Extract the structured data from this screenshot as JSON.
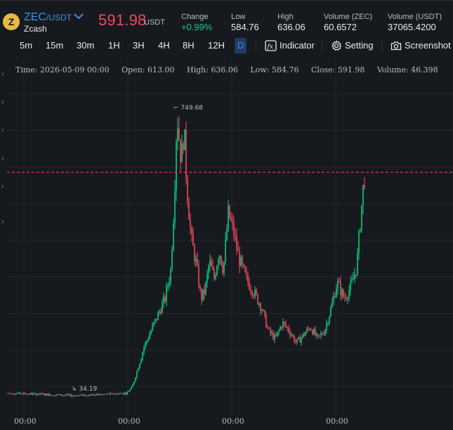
{
  "header": {
    "coin_icon": "zcash-coin-icon",
    "pair_base": "ZEC",
    "pair_quote": "/USDT",
    "coin_name": "Zcash",
    "price": "591.98",
    "price_unit": "USDT",
    "change_label": "Change",
    "change_value": "+0.99%",
    "low_label": "Low",
    "low_value": "584.76",
    "high_label": "High",
    "high_value": "636.06",
    "vol_base_label": "Volume (ZEC)",
    "vol_base_value": "60.6572",
    "vol_quote_label": "Volume (USDT)",
    "vol_quote_value": "37065.4200"
  },
  "toolbar": {
    "timeframes": [
      "5m",
      "15m",
      "30m",
      "1H",
      "3H",
      "4H",
      "8H",
      "12H",
      "D"
    ],
    "active_timeframe": "D",
    "indicator_label": "Indicator",
    "setting_label": "Setting",
    "screenshot_label": "Screenshot"
  },
  "info": {
    "time": "Time: 2026-05-09 00:00",
    "open": "Open: 613.00",
    "high": "High: 636.06",
    "low": "Low: 584.76",
    "close": "Close: 591.98",
    "volume": "Volume: 46.398"
  },
  "chart_data": {
    "type": "candlestick",
    "max_marker": "749.68",
    "min_marker": "34.19",
    "current_price_line": 591.98,
    "ylim": [
      0,
      820
    ],
    "x_tick_labels": [
      "00:00",
      "00:00",
      "00:00",
      "00:00"
    ],
    "colors": {
      "up": "#0ecb81",
      "down": "#f6465d",
      "price_line": "#f6465d",
      "grid": "#23272d"
    }
  }
}
